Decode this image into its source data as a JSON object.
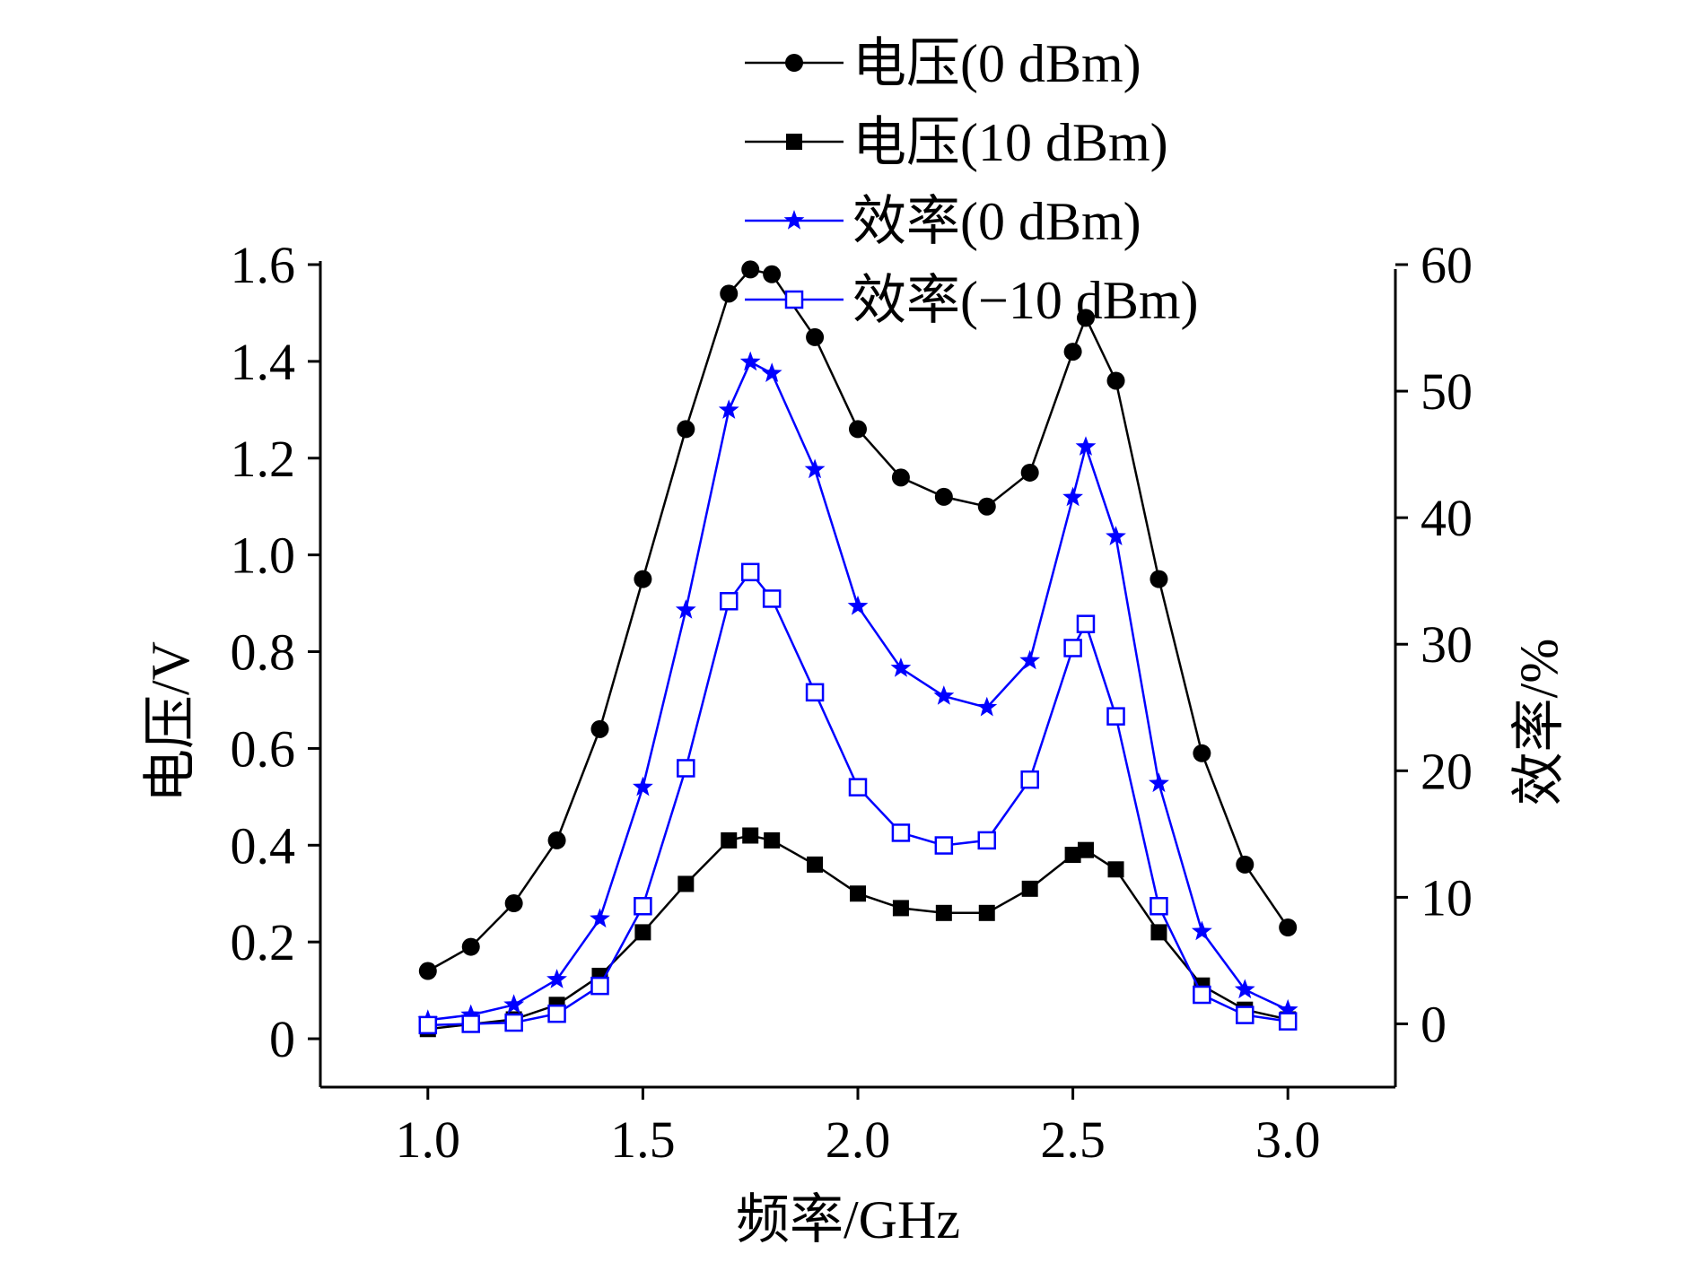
{
  "chart_data": {
    "type": "line",
    "title": "",
    "xlabel": "频率/GHz",
    "ylabel": "电压/V",
    "y2label": "效率/%",
    "xlim": [
      0.75,
      3.25
    ],
    "ylim": [
      -0.1,
      1.6
    ],
    "y2lim": [
      -5,
      60
    ],
    "x_ticks": [
      "1.0",
      "1.5",
      "2.0",
      "2.5",
      "3.0"
    ],
    "x_tick_values": [
      1.0,
      1.5,
      2.0,
      2.5,
      3.0
    ],
    "y_ticks": [
      "0",
      "0.2",
      "0.4",
      "0.6",
      "0.8",
      "1.0",
      "1.2",
      "1.4",
      "1.6"
    ],
    "y_tick_values": [
      0,
      0.2,
      0.4,
      0.6,
      0.8,
      1.0,
      1.2,
      1.4,
      1.6
    ],
    "y2_ticks": [
      "0",
      "10",
      "20",
      "30",
      "40",
      "50",
      "60"
    ],
    "y2_tick_values": [
      0,
      10,
      20,
      30,
      40,
      50,
      60
    ],
    "legend_position": "top",
    "series": [
      {
        "name": "电压(0 dBm)",
        "axis": "left",
        "marker": "circle",
        "color": "#000000",
        "x": [
          1.0,
          1.1,
          1.2,
          1.3,
          1.4,
          1.5,
          1.6,
          1.7,
          1.75,
          1.8,
          1.9,
          2.0,
          2.1,
          2.2,
          2.3,
          2.4,
          2.5,
          2.53,
          2.6,
          2.7,
          2.8,
          2.9,
          3.0
        ],
        "values": [
          0.14,
          0.19,
          0.28,
          0.41,
          0.64,
          0.95,
          1.26,
          1.54,
          1.59,
          1.58,
          1.45,
          1.26,
          1.16,
          1.12,
          1.1,
          1.17,
          1.42,
          1.49,
          1.36,
          0.95,
          0.59,
          0.36,
          0.23
        ]
      },
      {
        "name": "电压(10 dBm)",
        "axis": "left",
        "marker": "square",
        "color": "#000000",
        "x": [
          1.0,
          1.1,
          1.2,
          1.3,
          1.4,
          1.5,
          1.6,
          1.7,
          1.75,
          1.8,
          1.9,
          2.0,
          2.1,
          2.2,
          2.3,
          2.4,
          2.5,
          2.53,
          2.6,
          2.7,
          2.8,
          2.9,
          3.0
        ],
        "values": [
          0.02,
          0.03,
          0.04,
          0.07,
          0.13,
          0.22,
          0.32,
          0.41,
          0.42,
          0.41,
          0.36,
          0.3,
          0.27,
          0.26,
          0.26,
          0.31,
          0.38,
          0.39,
          0.35,
          0.22,
          0.11,
          0.06,
          0.04
        ]
      },
      {
        "name": "效率(0 dBm)",
        "axis": "right",
        "marker": "star",
        "color": "#0000ff",
        "x": [
          1.0,
          1.1,
          1.2,
          1.3,
          1.4,
          1.5,
          1.6,
          1.7,
          1.75,
          1.8,
          1.9,
          2.0,
          2.1,
          2.2,
          2.3,
          2.4,
          2.5,
          2.53,
          2.6,
          2.7,
          2.8,
          2.9,
          3.0
        ],
        "values": [
          0.3,
          0.7,
          1.5,
          3.5,
          8.3,
          18.7,
          32.7,
          48.5,
          52.3,
          51.4,
          43.8,
          33.0,
          28.1,
          25.9,
          25.0,
          28.7,
          41.6,
          45.6,
          38.5,
          19.0,
          7.3,
          2.7,
          1.1
        ]
      },
      {
        "name": "效率(−10 dBm)",
        "axis": "right",
        "marker": "open-square",
        "color": "#0000ff",
        "x": [
          1.0,
          1.1,
          1.2,
          1.3,
          1.4,
          1.5,
          1.6,
          1.7,
          1.75,
          1.8,
          1.9,
          2.0,
          2.1,
          2.2,
          2.3,
          2.4,
          2.5,
          2.53,
          2.6,
          2.7,
          2.8,
          2.9,
          3.0
        ],
        "values": [
          -0.1,
          0.0,
          0.1,
          0.8,
          3.0,
          9.3,
          20.2,
          33.4,
          35.7,
          33.6,
          26.2,
          18.7,
          15.1,
          14.1,
          14.5,
          19.3,
          29.7,
          31.6,
          24.3,
          9.3,
          2.3,
          0.7,
          0.2
        ]
      }
    ]
  }
}
